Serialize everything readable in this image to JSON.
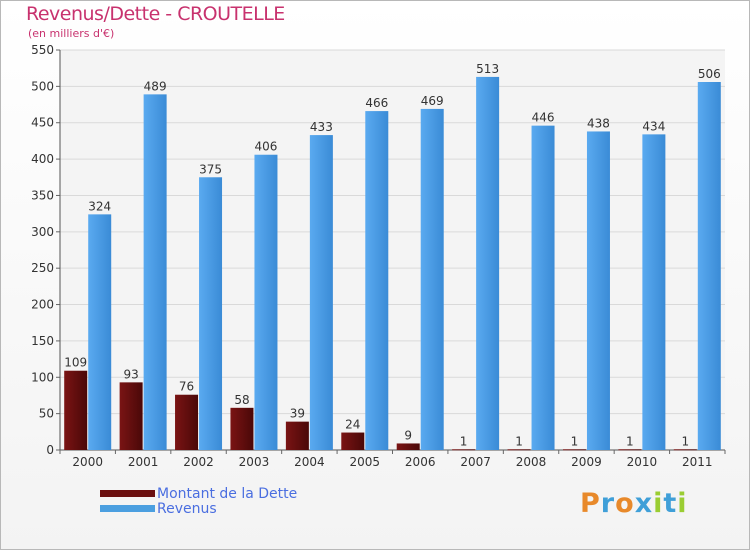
{
  "chart_data": {
    "type": "bar",
    "title": "Revenus/Dette - CROUTELLE",
    "subtitle": "(en milliers d'€)",
    "categories": [
      "2000",
      "2001",
      "2002",
      "2003",
      "2004",
      "2005",
      "2006",
      "2007",
      "2008",
      "2009",
      "2010",
      "2011"
    ],
    "series": [
      {
        "name": "Montant de la Dette",
        "color": "#6b1010",
        "values": [
          109,
          93,
          76,
          58,
          39,
          24,
          9,
          1,
          1,
          1,
          1,
          1
        ]
      },
      {
        "name": "Revenus",
        "color": "#4b9fe0",
        "values": [
          324,
          489,
          375,
          406,
          433,
          466,
          469,
          513,
          446,
          438,
          434,
          506
        ]
      }
    ],
    "ylim": [
      0,
      550
    ],
    "yticks": [
      0,
      50,
      100,
      150,
      200,
      250,
      300,
      350,
      400,
      450,
      500,
      550
    ],
    "grid": true,
    "legend": "bottom-left"
  },
  "logo": {
    "text": "Proxiti",
    "letters": [
      {
        "ch": "P",
        "color": "#e8892a"
      },
      {
        "ch": "r",
        "color": "#3f9fd8"
      },
      {
        "ch": "o",
        "color": "#e8892a"
      },
      {
        "ch": "x",
        "color": "#3f9fd8"
      },
      {
        "ch": "i",
        "color": "#9acd32"
      },
      {
        "ch": "t",
        "color": "#3f9fd8"
      },
      {
        "ch": "i",
        "color": "#9acd32"
      }
    ]
  }
}
